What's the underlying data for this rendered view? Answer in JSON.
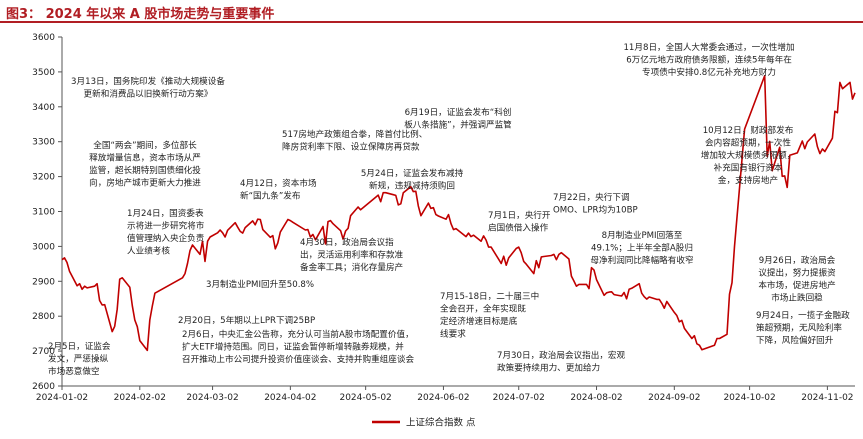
{
  "figure_title": "图3：  2024 年以来 A 股市场走势与重要事件",
  "chart_data": {
    "type": "line",
    "title": "",
    "xlabel": "",
    "ylabel": "",
    "ylim": [
      2600,
      3600
    ],
    "yticks": [
      2600,
      2700,
      2800,
      2900,
      3000,
      3100,
      3200,
      3300,
      3400,
      3500,
      3600
    ],
    "xticks": [
      "2024-01-02",
      "2024-02-02",
      "2024-03-02",
      "2024-04-02",
      "2024-05-02",
      "2024-06-02",
      "2024-07-02",
      "2024-08-02",
      "2024-09-02",
      "2024-10-02",
      "2024-11-02"
    ],
    "xlim": [
      "2024-01-02",
      "2024-11-13"
    ],
    "grid": false,
    "legend_position": "bottom-center",
    "line_color": "#c00000",
    "series": [
      {
        "name": "上证综合指数 点",
        "points": [
          [
            "2024-01-02",
            2962
          ],
          [
            "2024-01-03",
            2967
          ],
          [
            "2024-01-04",
            2954
          ],
          [
            "2024-01-05",
            2929
          ],
          [
            "2024-01-08",
            2887
          ],
          [
            "2024-01-09",
            2893
          ],
          [
            "2024-01-10",
            2877
          ],
          [
            "2024-01-11",
            2886
          ],
          [
            "2024-01-12",
            2881
          ],
          [
            "2024-01-15",
            2886
          ],
          [
            "2024-01-16",
            2893
          ],
          [
            "2024-01-17",
            2845
          ],
          [
            "2024-01-18",
            2832
          ],
          [
            "2024-01-19",
            2833
          ],
          [
            "2024-01-22",
            2756
          ],
          [
            "2024-01-23",
            2771
          ],
          [
            "2024-01-24",
            2820
          ],
          [
            "2024-01-25",
            2906
          ],
          [
            "2024-01-26",
            2910
          ],
          [
            "2024-01-29",
            2883
          ],
          [
            "2024-01-30",
            2830
          ],
          [
            "2024-01-31",
            2789
          ],
          [
            "2024-02-01",
            2770
          ],
          [
            "2024-02-02",
            2730
          ],
          [
            "2024-02-05",
            2702
          ],
          [
            "2024-02-06",
            2789
          ],
          [
            "2024-02-07",
            2829
          ],
          [
            "2024-02-08",
            2866
          ],
          [
            "2024-02-19",
            2910
          ],
          [
            "2024-02-20",
            2922
          ],
          [
            "2024-02-21",
            2951
          ],
          [
            "2024-02-22",
            2988
          ],
          [
            "2024-02-23",
            3004
          ],
          [
            "2024-02-26",
            2977
          ],
          [
            "2024-02-27",
            3015
          ],
          [
            "2024-02-28",
            2957
          ],
          [
            "2024-02-29",
            3015
          ],
          [
            "2024-03-01",
            3027
          ],
          [
            "2024-03-04",
            3039
          ],
          [
            "2024-03-05",
            3047
          ],
          [
            "2024-03-06",
            3039
          ],
          [
            "2024-03-07",
            3027
          ],
          [
            "2024-03-08",
            3046
          ],
          [
            "2024-03-11",
            3068
          ],
          [
            "2024-03-12",
            3055
          ],
          [
            "2024-03-13",
            3043
          ],
          [
            "2024-03-14",
            3038
          ],
          [
            "2024-03-15",
            3054
          ],
          [
            "2024-03-18",
            3073
          ],
          [
            "2024-03-19",
            3062
          ],
          [
            "2024-03-20",
            3078
          ],
          [
            "2024-03-21",
            3077
          ],
          [
            "2024-03-22",
            3048
          ],
          [
            "2024-03-25",
            3026
          ],
          [
            "2024-03-26",
            3031
          ],
          [
            "2024-03-27",
            2993
          ],
          [
            "2024-03-28",
            3010
          ],
          [
            "2024-03-29",
            3041
          ],
          [
            "2024-04-01",
            3077
          ],
          [
            "2024-04-02",
            3074
          ],
          [
            "2024-04-03",
            3069
          ],
          [
            "2024-04-08",
            3047
          ],
          [
            "2024-04-09",
            3048
          ],
          [
            "2024-04-10",
            3027
          ],
          [
            "2024-04-11",
            3034
          ],
          [
            "2024-04-12",
            3019
          ],
          [
            "2024-04-15",
            3057
          ],
          [
            "2024-04-16",
            3007
          ],
          [
            "2024-04-17",
            3071
          ],
          [
            "2024-04-18",
            3074
          ],
          [
            "2024-04-19",
            3065
          ],
          [
            "2024-04-22",
            3045
          ],
          [
            "2024-04-23",
            3021
          ],
          [
            "2024-04-24",
            3044
          ],
          [
            "2024-04-25",
            3052
          ],
          [
            "2024-04-26",
            3088
          ],
          [
            "2024-04-29",
            3113
          ],
          [
            "2024-04-30",
            3105
          ],
          [
            "2024-05-06",
            3141
          ],
          [
            "2024-05-07",
            3147
          ],
          [
            "2024-05-08",
            3128
          ],
          [
            "2024-05-09",
            3154
          ],
          [
            "2024-05-10",
            3154
          ],
          [
            "2024-05-13",
            3148
          ],
          [
            "2024-05-14",
            3146
          ],
          [
            "2024-05-15",
            3119
          ],
          [
            "2024-05-16",
            3122
          ],
          [
            "2024-05-17",
            3154
          ],
          [
            "2024-05-20",
            3171
          ],
          [
            "2024-05-21",
            3157
          ],
          [
            "2024-05-22",
            3158
          ],
          [
            "2024-05-23",
            3116
          ],
          [
            "2024-05-24",
            3088
          ],
          [
            "2024-05-27",
            3124
          ],
          [
            "2024-05-28",
            3109
          ],
          [
            "2024-05-29",
            3111
          ],
          [
            "2024-05-30",
            3091
          ],
          [
            "2024-05-31",
            3087
          ],
          [
            "2024-06-03",
            3078
          ],
          [
            "2024-06-04",
            3091
          ],
          [
            "2024-06-05",
            3065
          ],
          [
            "2024-06-06",
            3048
          ],
          [
            "2024-06-07",
            3051
          ],
          [
            "2024-06-11",
            3028
          ],
          [
            "2024-06-12",
            3038
          ],
          [
            "2024-06-13",
            3028
          ],
          [
            "2024-06-14",
            3032
          ],
          [
            "2024-06-17",
            3015
          ],
          [
            "2024-06-18",
            3030
          ],
          [
            "2024-06-19",
            3018
          ],
          [
            "2024-06-20",
            2998
          ],
          [
            "2024-06-21",
            2998
          ],
          [
            "2024-06-24",
            2963
          ],
          [
            "2024-06-25",
            2951
          ],
          [
            "2024-06-26",
            2972
          ],
          [
            "2024-06-27",
            2946
          ],
          [
            "2024-06-28",
            2967
          ],
          [
            "2024-07-01",
            2994
          ],
          [
            "2024-07-02",
            2998
          ],
          [
            "2024-07-03",
            2982
          ],
          [
            "2024-07-04",
            2957
          ],
          [
            "2024-07-05",
            2949
          ],
          [
            "2024-07-08",
            2922
          ],
          [
            "2024-07-09",
            2959
          ],
          [
            "2024-07-10",
            2939
          ],
          [
            "2024-07-11",
            2970
          ],
          [
            "2024-07-12",
            2971
          ],
          [
            "2024-07-15",
            2974
          ],
          [
            "2024-07-16",
            2977
          ],
          [
            "2024-07-17",
            2962
          ],
          [
            "2024-07-18",
            2977
          ],
          [
            "2024-07-19",
            2982
          ],
          [
            "2024-07-22",
            2964
          ],
          [
            "2024-07-23",
            2915
          ],
          [
            "2024-07-24",
            2901
          ],
          [
            "2024-07-25",
            2886
          ],
          [
            "2024-07-26",
            2891
          ],
          [
            "2024-07-29",
            2891
          ],
          [
            "2024-07-30",
            2879
          ],
          [
            "2024-07-31",
            2939
          ],
          [
            "2024-08-01",
            2932
          ],
          [
            "2024-08-02",
            2905
          ],
          [
            "2024-08-05",
            2860
          ],
          [
            "2024-08-06",
            2867
          ],
          [
            "2024-08-07",
            2869
          ],
          [
            "2024-08-08",
            2870
          ],
          [
            "2024-08-09",
            2862
          ],
          [
            "2024-08-12",
            2858
          ],
          [
            "2024-08-13",
            2868
          ],
          [
            "2024-08-14",
            2850
          ],
          [
            "2024-08-15",
            2877
          ],
          [
            "2024-08-16",
            2880
          ],
          [
            "2024-08-19",
            2893
          ],
          [
            "2024-08-20",
            2866
          ],
          [
            "2024-08-21",
            2856
          ],
          [
            "2024-08-22",
            2849
          ],
          [
            "2024-08-23",
            2855
          ],
          [
            "2024-08-26",
            2848
          ],
          [
            "2024-08-27",
            2848
          ],
          [
            "2024-08-28",
            2837
          ],
          [
            "2024-08-29",
            2823
          ],
          [
            "2024-08-30",
            2842
          ],
          [
            "2024-09-02",
            2811
          ],
          [
            "2024-09-03",
            2802
          ],
          [
            "2024-09-04",
            2784
          ],
          [
            "2024-09-05",
            2788
          ],
          [
            "2024-09-06",
            2765
          ],
          [
            "2024-09-09",
            2736
          ],
          [
            "2024-09-10",
            2744
          ],
          [
            "2024-09-11",
            2721
          ],
          [
            "2024-09-12",
            2717
          ],
          [
            "2024-09-13",
            2704
          ],
          [
            "2024-09-18",
            2717
          ],
          [
            "2024-09-19",
            2736
          ],
          [
            "2024-09-20",
            2736
          ],
          [
            "2024-09-23",
            2748
          ],
          [
            "2024-09-24",
            2863
          ],
          [
            "2024-09-25",
            2896
          ],
          [
            "2024-09-26",
            3000
          ],
          [
            "2024-09-27",
            3087
          ],
          [
            "2024-09-30",
            3336
          ],
          [
            "2024-10-08",
            3489
          ],
          [
            "2024-10-09",
            3258
          ],
          [
            "2024-10-10",
            3301
          ],
          [
            "2024-10-11",
            3217
          ],
          [
            "2024-10-14",
            3284
          ],
          [
            "2024-10-15",
            3201
          ],
          [
            "2024-10-16",
            3202
          ],
          [
            "2024-10-17",
            3169
          ],
          [
            "2024-10-18",
            3261
          ],
          [
            "2024-10-21",
            3268
          ],
          [
            "2024-10-22",
            3285
          ],
          [
            "2024-10-23",
            3302
          ],
          [
            "2024-10-24",
            3280
          ],
          [
            "2024-10-25",
            3299
          ],
          [
            "2024-10-28",
            3322
          ],
          [
            "2024-10-29",
            3286
          ],
          [
            "2024-10-30",
            3266
          ],
          [
            "2024-10-31",
            3279
          ],
          [
            "2024-11-01",
            3272
          ],
          [
            "2024-11-04",
            3310
          ],
          [
            "2024-11-05",
            3387
          ],
          [
            "2024-11-06",
            3383
          ],
          [
            "2024-11-07",
            3470
          ],
          [
            "2024-11-08",
            3452
          ],
          [
            "2024-11-11",
            3470
          ],
          [
            "2024-11-12",
            3422
          ],
          [
            "2024-11-13",
            3440
          ]
        ]
      }
    ],
    "annotations": [
      {
        "lines": [
          "1月24日，国资委表",
          "示将进一步研究将市",
          "值管理纳入央企负责",
          "人业绩考核"
        ],
        "date": "2024-01-24",
        "value": 2820
      },
      {
        "lines": [
          "2月5日，证监会",
          "发文，严惩操纵",
          "市场恶意做空"
        ],
        "date": "2024-02-05",
        "value": 2702
      },
      {
        "lines": [
          "全国“两会”期间，多位部长",
          "释放增量信息，资本市场从严",
          "监管，超长期特别国债细化投",
          "向，房地产城市更新大力推进"
        ],
        "date": "2024-03-08",
        "value": 3046
      },
      {
        "lines": [
          "3月13日，国务院印发《推动大规模设备",
          "更新和消费品以旧换新行动方案》"
        ],
        "date": "2024-03-13",
        "value": 3043
      },
      {
        "lines": [
          "2月20日，5年期以上LPR下调25BP"
        ],
        "date": "2024-02-20",
        "value": 2922
      },
      {
        "lines": [
          "2月6日，中央汇金公告称，充分认可当前A股市场配置价值，",
          "扩大ETF增持范围。同日，证监会暂停新增转融券规模，并",
          "召开推动上市公司提升投资价值座谈会、支持并购重组座谈会"
        ],
        "date": "2024-02-06",
        "value": 2789
      },
      {
        "lines": [
          "3月制造业PMI回升至50.8%"
        ],
        "date": "2024-03-29",
        "value": 3041
      },
      {
        "lines": [
          "4月12日，资本市场",
          "新“国九条”发布"
        ],
        "date": "2024-04-12",
        "value": 3019
      },
      {
        "lines": [
          "4月30日，政治局会议指",
          "出，灵活运用利率和存款准",
          "备金率工具；消化存量房产"
        ],
        "date": "2024-04-30",
        "value": 3105
      },
      {
        "lines": [
          "517房地产政策组合拳，降首付比例、",
          "降房贷利率下限、设立保障房再贷款"
        ],
        "date": "2024-05-17",
        "value": 3154
      },
      {
        "lines": [
          "5月24日，证监会发布减持",
          "新规，违规减持须购回"
        ],
        "date": "2024-05-24",
        "value": 3088
      },
      {
        "lines": [
          "6月19日，证监会发布“科创",
          "板八条措施”，并强调严监管"
        ],
        "date": "2024-06-19",
        "value": 3018
      },
      {
        "lines": [
          "7月1日，央行开",
          "启国债借入操作"
        ],
        "date": "2024-07-01",
        "value": 2994
      },
      {
        "lines": [
          "7月22日，央行下调",
          "OMO、LPR均为10BP"
        ],
        "date": "2024-07-22",
        "value": 2964
      },
      {
        "lines": [
          "7月15-18日，二十届三中",
          "全会召开，全年实现既",
          "定经济增速目标是底",
          "线要求"
        ],
        "date": "2024-07-15",
        "value": 2974
      },
      {
        "lines": [
          "7月30日，政治局会议指出，宏观",
          "政策要持续用力、更加给力"
        ],
        "date": "2024-07-30",
        "value": 2879
      },
      {
        "lines": [
          "8月制造业PMI回落至",
          "49.1%；上半年全部A股归",
          "母净利润同比降幅略有收窄"
        ],
        "date": "2024-08-30",
        "value": 2842
      },
      {
        "lines": [
          "9月24日，一揽子金融政",
          "策超预期，无风险利率",
          "下降，风险偏好回升"
        ],
        "date": "2024-09-24",
        "value": 2863
      },
      {
        "lines": [
          "9月26日，政治局会",
          "议提出，努力提振资",
          "本市场，促进房地产",
          "市场止跌回稳"
        ],
        "date": "2024-09-26",
        "value": 3000
      },
      {
        "lines": [
          "10月12日，财政部发布",
          "会内容超预期，一次性",
          "增加较大规模债务限额，",
          "补充国有银行资本",
          "金，支持房地产"
        ],
        "date": "2024-10-12",
        "value": 3250
      },
      {
        "lines": [
          "11月8日，全国人大常委会通过，一次性增加",
          "6万亿元地方政府债务限额，连续5年每年在",
          "专项债中安排0.8亿元补充地方财力"
        ],
        "date": "2024-11-08",
        "value": 3452
      }
    ]
  }
}
